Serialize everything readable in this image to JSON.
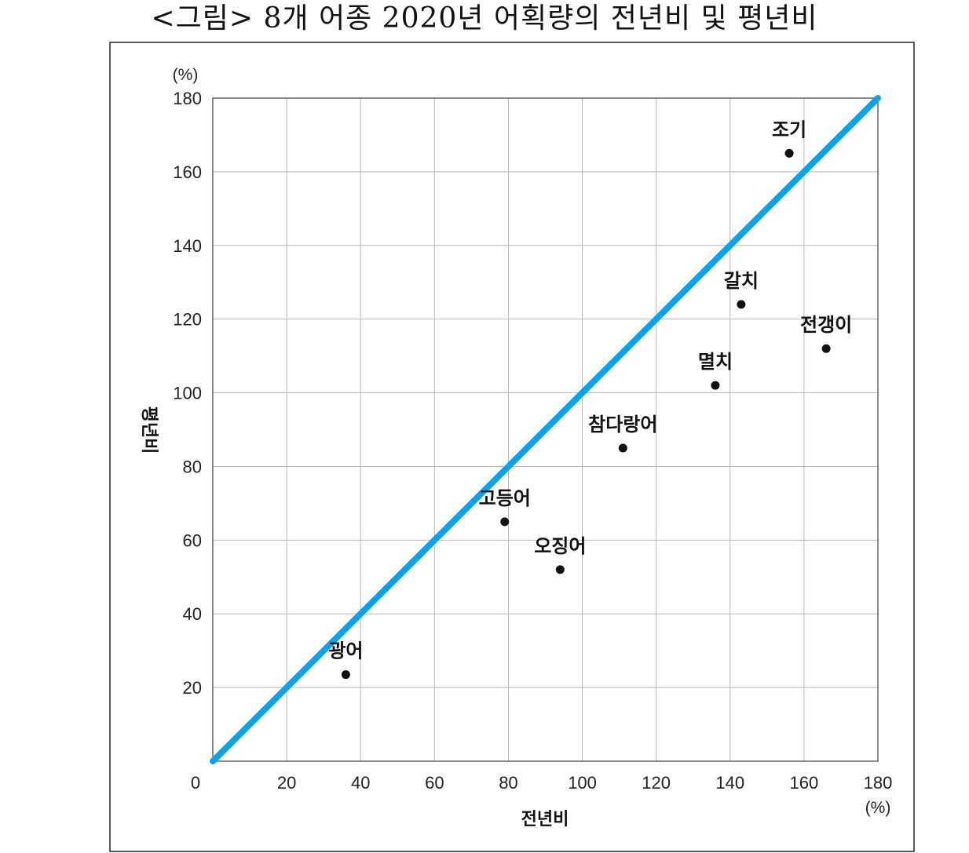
{
  "figure": {
    "title": "<그림> 8개 어종 2020년 어획량의 전년비 및 평년비"
  },
  "chart_data": {
    "type": "scatter",
    "xlabel": "전년비",
    "ylabel": "평년비",
    "x_unit": "(%)",
    "y_unit": "(%)",
    "xlim": [
      0,
      180
    ],
    "ylim": [
      0,
      180
    ],
    "x_ticks": [
      "0",
      "20",
      "40",
      "60",
      "80",
      "100",
      "120",
      "140",
      "160",
      "180"
    ],
    "y_ticks": [
      "20",
      "40",
      "60",
      "80",
      "100",
      "120",
      "140",
      "160",
      "180"
    ],
    "grid": true,
    "reference_line": {
      "from": [
        0,
        0
      ],
      "to": [
        180,
        180
      ],
      "color": "#0AA3EA"
    },
    "point_color": "#111111",
    "points": [
      {
        "label": "광어",
        "x": 36,
        "y": 23.5
      },
      {
        "label": "고등어",
        "x": 79,
        "y": 65
      },
      {
        "label": "오징어",
        "x": 94,
        "y": 52
      },
      {
        "label": "참다랑어",
        "x": 111,
        "y": 85
      },
      {
        "label": "멸치",
        "x": 136,
        "y": 102
      },
      {
        "label": "갈치",
        "x": 143,
        "y": 124
      },
      {
        "label": "전갱이",
        "x": 166,
        "y": 112
      },
      {
        "label": "조기",
        "x": 156,
        "y": 165
      }
    ]
  }
}
